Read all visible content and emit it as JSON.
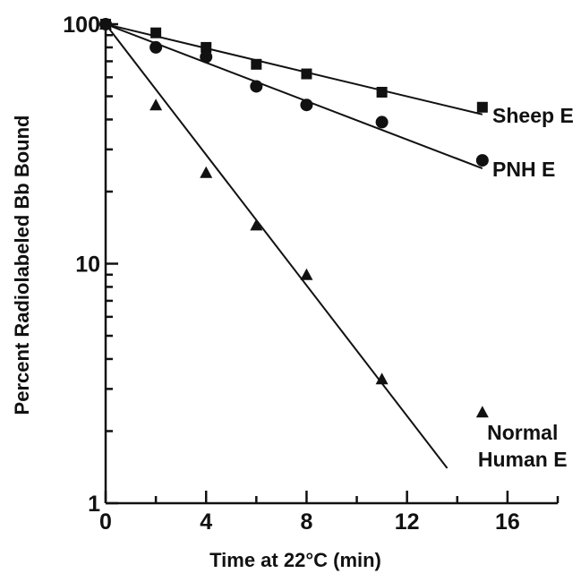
{
  "chart_data": {
    "type": "scatter",
    "title": "",
    "xlabel": "Time at 22°C (min)",
    "ylabel": "Percent Radiolabeled Bb Bound",
    "xlim": [
      0,
      18
    ],
    "ylim": [
      1,
      100
    ],
    "y_scale": "log",
    "x_ticks": [
      "0",
      "4",
      "8",
      "12",
      "16"
    ],
    "x_tick_values": [
      0,
      4,
      8,
      12,
      16
    ],
    "y_ticks": [
      "1",
      "10",
      "100"
    ],
    "y_tick_values": [
      1,
      10,
      100
    ],
    "grid": false,
    "series": [
      {
        "name": "Sheep E",
        "marker": "square",
        "x": [
          0,
          2,
          4,
          6,
          8,
          11,
          15
        ],
        "y": [
          100,
          92,
          80,
          68,
          62,
          52,
          45
        ],
        "fit_line": {
          "x": [
            0,
            15
          ],
          "y": [
            100,
            42
          ]
        }
      },
      {
        "name": "PNH E",
        "marker": "circle",
        "x": [
          0,
          2,
          4,
          6,
          8,
          11,
          15
        ],
        "y": [
          100,
          80,
          73,
          55,
          46,
          39,
          27
        ],
        "fit_line": {
          "x": [
            0,
            15
          ],
          "y": [
            100,
            25
          ]
        }
      },
      {
        "name": "Normal Human E",
        "marker": "triangle",
        "x": [
          0,
          2,
          4,
          6,
          8,
          11,
          15
        ],
        "y": [
          100,
          46,
          24,
          14.5,
          9,
          3.3,
          2.4
        ],
        "fit_line": {
          "x": [
            0,
            13.6
          ],
          "y": [
            100,
            1.4
          ]
        }
      }
    ],
    "series_labels": [
      {
        "lines": [
          "Sheep E"
        ],
        "x": 15.4,
        "y": 42,
        "align": "start"
      },
      {
        "lines": [
          "PNH E"
        ],
        "x": 15.4,
        "y": 25,
        "align": "start"
      },
      {
        "lines": [
          "Normal",
          "Human E"
        ],
        "x": 16.6,
        "y": 1.75,
        "align": "middle"
      }
    ]
  }
}
